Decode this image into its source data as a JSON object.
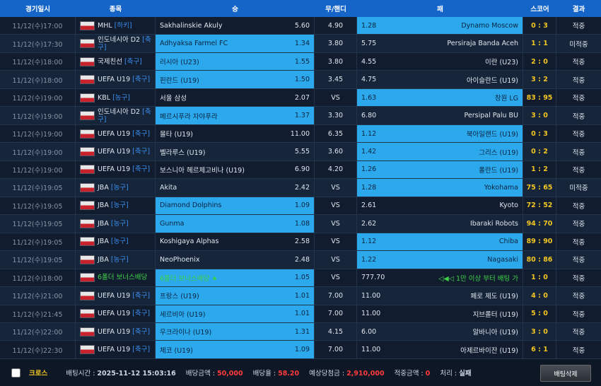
{
  "header": [
    "경기일시",
    "종목",
    "승",
    "무/핸디",
    "패",
    "스코어",
    "결과"
  ],
  "rows": [
    {
      "date": "11/12(수)17:00",
      "league": "MHL",
      "sport": "[하키]",
      "home": "Sakhalinskie Akuly",
      "home_odds": "5.60",
      "draw": "4.90",
      "away_odds": "1.28",
      "away": "Dynamo Moscow",
      "score": "0 : 3",
      "result": "적중",
      "pick": "away"
    },
    {
      "date": "11/12(수)17:30",
      "league": "인도네시아 D2",
      "sport": "[축구]",
      "home": "Adhyaksa Farmel FC",
      "home_odds": "1.34",
      "draw": "3.80",
      "away_odds": "5.75",
      "away": "Persiraja Banda Aceh",
      "score": "1 : 1",
      "result": "미적중",
      "pick": "home"
    },
    {
      "date": "11/12(수)18:00",
      "league": "국제친선",
      "sport": "[축구]",
      "home": "러시아 (U23)",
      "home_odds": "1.55",
      "draw": "3.80",
      "away_odds": "4.55",
      "away": "이란 (U23)",
      "score": "2 : 0",
      "result": "적중",
      "pick": "home"
    },
    {
      "date": "11/12(수)18:00",
      "league": "UEFA U19",
      "sport": "[축구]",
      "home": "핀란드 (U19)",
      "home_odds": "1.50",
      "draw": "3.45",
      "away_odds": "4.75",
      "away": "아이슬란드 (U19)",
      "score": "3 : 2",
      "result": "적중",
      "pick": "home"
    },
    {
      "date": "11/12(수)19:00",
      "league": "KBL",
      "sport": "[농구]",
      "home": "서울 삼성",
      "home_odds": "2.07",
      "draw": "VS",
      "away_odds": "1.63",
      "away": "창원 LG",
      "score": "83 : 95",
      "result": "적중",
      "pick": "away"
    },
    {
      "date": "11/12(수)19:00",
      "league": "인도네시아 D2",
      "sport": "[축구]",
      "home": "페르시푸라 자야푸라",
      "home_odds": "1.37",
      "draw": "3.30",
      "away_odds": "6.80",
      "away": "Persipal Palu BU",
      "score": "3 : 0",
      "result": "적중",
      "pick": "home"
    },
    {
      "date": "11/12(수)19:00",
      "league": "UEFA U19",
      "sport": "[축구]",
      "home": "몰타 (U19)",
      "home_odds": "11.00",
      "draw": "6.35",
      "away_odds": "1.12",
      "away": "북아일랜드 (U19)",
      "score": "0 : 3",
      "result": "적중",
      "pick": "away"
    },
    {
      "date": "11/12(수)19:00",
      "league": "UEFA U19",
      "sport": "[축구]",
      "home": "벨라루스 (U19)",
      "home_odds": "5.55",
      "draw": "3.60",
      "away_odds": "1.42",
      "away": "그리스 (U19)",
      "score": "0 : 2",
      "result": "적중",
      "pick": "away"
    },
    {
      "date": "11/12(수)19:00",
      "league": "UEFA U19",
      "sport": "[축구]",
      "home": "보스니아 헤르체고비나 (U19)",
      "home_odds": "6.90",
      "draw": "4.20",
      "away_odds": "1.26",
      "away": "폴란드 (U19)",
      "score": "1 : 2",
      "result": "적중",
      "pick": "away"
    },
    {
      "date": "11/12(수)19:05",
      "league": "JBA",
      "sport": "[농구]",
      "home": "Akita",
      "home_odds": "2.42",
      "draw": "VS",
      "away_odds": "1.28",
      "away": "Yokohama",
      "score": "75 : 65",
      "result": "미적중",
      "pick": "away"
    },
    {
      "date": "11/12(수)19:05",
      "league": "JBA",
      "sport": "[농구]",
      "home": "Diamond Dolphins",
      "home_odds": "1.09",
      "draw": "VS",
      "away_odds": "2.61",
      "away": "Kyoto",
      "score": "72 : 52",
      "result": "적중",
      "pick": "home"
    },
    {
      "date": "11/12(수)19:05",
      "league": "JBA",
      "sport": "[농구]",
      "home": "Gunma",
      "home_odds": "1.08",
      "draw": "VS",
      "away_odds": "2.62",
      "away": "Ibaraki Robots",
      "score": "94 : 70",
      "result": "적중",
      "pick": "home"
    },
    {
      "date": "11/12(수)19:05",
      "league": "JBA",
      "sport": "[농구]",
      "home": "Koshigaya Alphas",
      "home_odds": "2.58",
      "draw": "VS",
      "away_odds": "1.12",
      "away": "Chiba",
      "score": "89 : 90",
      "result": "적중",
      "pick": "away"
    },
    {
      "date": "11/12(수)19:05",
      "league": "JBA",
      "sport": "[농구]",
      "home": "NeoPhoenix",
      "home_odds": "2.48",
      "draw": "VS",
      "away_odds": "1.22",
      "away": "Nagasaki",
      "score": "80 : 86",
      "result": "적중",
      "pick": "away"
    },
    {
      "date": "11/12(수)18:00",
      "league": "6폴더 보너스배당",
      "home": "6폴더 보너스배당 ★",
      "home_odds": "1.05",
      "draw": "VS",
      "away_odds": "777.70",
      "away": "◁◀◁ 1만 이상 부터 배팅 가",
      "score": "1 : 0",
      "result": "적중",
      "pick": "home",
      "text_color": "#3fd24a"
    },
    {
      "date": "11/12(수)21:00",
      "league": "UEFA U19",
      "sport": "[축구]",
      "home": "프랑스 (U19)",
      "home_odds": "1.01",
      "draw": "7.00",
      "away_odds": "11.00",
      "away": "페로 제도 (U19)",
      "score": "4 : 0",
      "result": "적중",
      "pick": "home"
    },
    {
      "date": "11/12(수)21:45",
      "league": "UEFA U19",
      "sport": "[축구]",
      "home": "세르비아 (U19)",
      "home_odds": "1.01",
      "draw": "7.00",
      "away_odds": "11.00",
      "away": "지브롤터 (U19)",
      "score": "5 : 0",
      "result": "적중",
      "pick": "home"
    },
    {
      "date": "11/12(수)22:00",
      "league": "UEFA U19",
      "sport": "[축구]",
      "home": "우크라이나 (U19)",
      "home_odds": "1.31",
      "draw": "4.15",
      "away_odds": "6.00",
      "away": "알바니아 (U19)",
      "score": "3 : 0",
      "result": "적중",
      "pick": "home"
    },
    {
      "date": "11/12(수)22:30",
      "league": "UEFA U19",
      "sport": "[축구]",
      "home": "체코 (U19)",
      "home_odds": "1.09",
      "draw": "7.00",
      "away_odds": "11.00",
      "away": "아제르바이잔 (U19)",
      "score": "6 : 1",
      "result": "적중",
      "pick": "home"
    }
  ],
  "footer": {
    "cross": "크로스",
    "items": [
      {
        "label": "배팅시간 :",
        "value": "2025-11-12 15:03:16"
      },
      {
        "label": "배당금액 :",
        "value": "50,000",
        "color": "#ff3b3b"
      },
      {
        "label": "배당율 :",
        "value": "58.20",
        "color": "#ff3b3b"
      },
      {
        "label": "예상당첨금 :",
        "value": "2,910,000",
        "color": "#ff3b3b"
      },
      {
        "label": "적중금액 :",
        "value": "0",
        "color": "#ff3b3b"
      },
      {
        "label": "처리 :",
        "value": "실패"
      }
    ],
    "button": "배팅삭제"
  }
}
